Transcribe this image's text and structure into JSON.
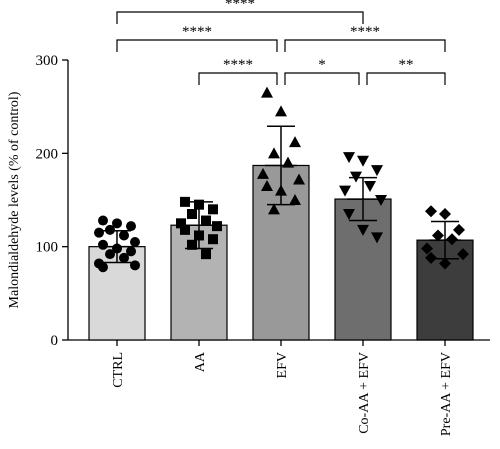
{
  "chart_data": {
    "type": "bar",
    "ylabel": "Malondialdehyde levels (% of control)",
    "ylim": [
      0,
      300
    ],
    "yticks": [
      0,
      100,
      200,
      300
    ],
    "categories": [
      "CTRL",
      "AA",
      "EFV",
      "Co-AA + EFV",
      "Pre-AA + EFV"
    ],
    "bar_colors": [
      "#d9d9d9",
      "#b3b3b3",
      "#999999",
      "#6e6e6e",
      "#3d3d3d"
    ],
    "marker_shapes": [
      "circle",
      "square",
      "triangle-up",
      "triangle-down",
      "diamond"
    ],
    "means": [
      100,
      123,
      187,
      151,
      107
    ],
    "error_sd": [
      17,
      25,
      42,
      23,
      20
    ],
    "points": [
      [
        128,
        125,
        122,
        118,
        112,
        115,
        105,
        102,
        98,
        95,
        92,
        88,
        82,
        80,
        78
      ],
      [
        148,
        145,
        140,
        135,
        128,
        125,
        122,
        118,
        112,
        108,
        102,
        92
      ],
      [
        265,
        245,
        212,
        200,
        190,
        178,
        172,
        165,
        160,
        150,
        140
      ],
      [
        196,
        192,
        182,
        175,
        165,
        160,
        150,
        135,
        118,
        110
      ],
      [
        138,
        135,
        118,
        112,
        108,
        98,
        92,
        88,
        82
      ]
    ],
    "significance": [
      {
        "from": 0,
        "to": 3,
        "label": "****"
      },
      {
        "from": 0,
        "to": 2,
        "label": "****"
      },
      {
        "from": 1,
        "to": 2,
        "label": "****"
      },
      {
        "from": 2,
        "to": 4,
        "label": "****"
      },
      {
        "from": 2,
        "to": 3,
        "label": "*"
      },
      {
        "from": 3,
        "to": 4,
        "label": "**"
      }
    ]
  }
}
